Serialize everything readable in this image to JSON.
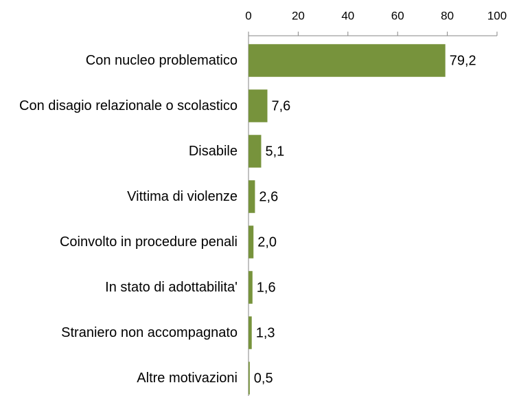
{
  "chart_data": {
    "type": "bar",
    "orientation": "horizontal",
    "categories": [
      "Con nucleo problematico",
      "Con disagio relazionale o scolastico",
      "Disabile",
      "Vittima di violenze",
      "Coinvolto in procedure penali",
      "In stato di adottabilita'",
      "Straniero non accompagnato",
      "Altre motivazioni"
    ],
    "values": [
      79.2,
      7.6,
      5.1,
      2.6,
      2.0,
      1.6,
      1.3,
      0.5
    ],
    "value_labels": [
      "79,2",
      "7,6",
      "5,1",
      "2,6",
      "2,0",
      "1,6",
      "1,3",
      "0,5"
    ],
    "color": "#77933c",
    "xlim": [
      0,
      100
    ],
    "xticks": [
      0,
      20,
      40,
      60,
      80,
      100
    ]
  }
}
